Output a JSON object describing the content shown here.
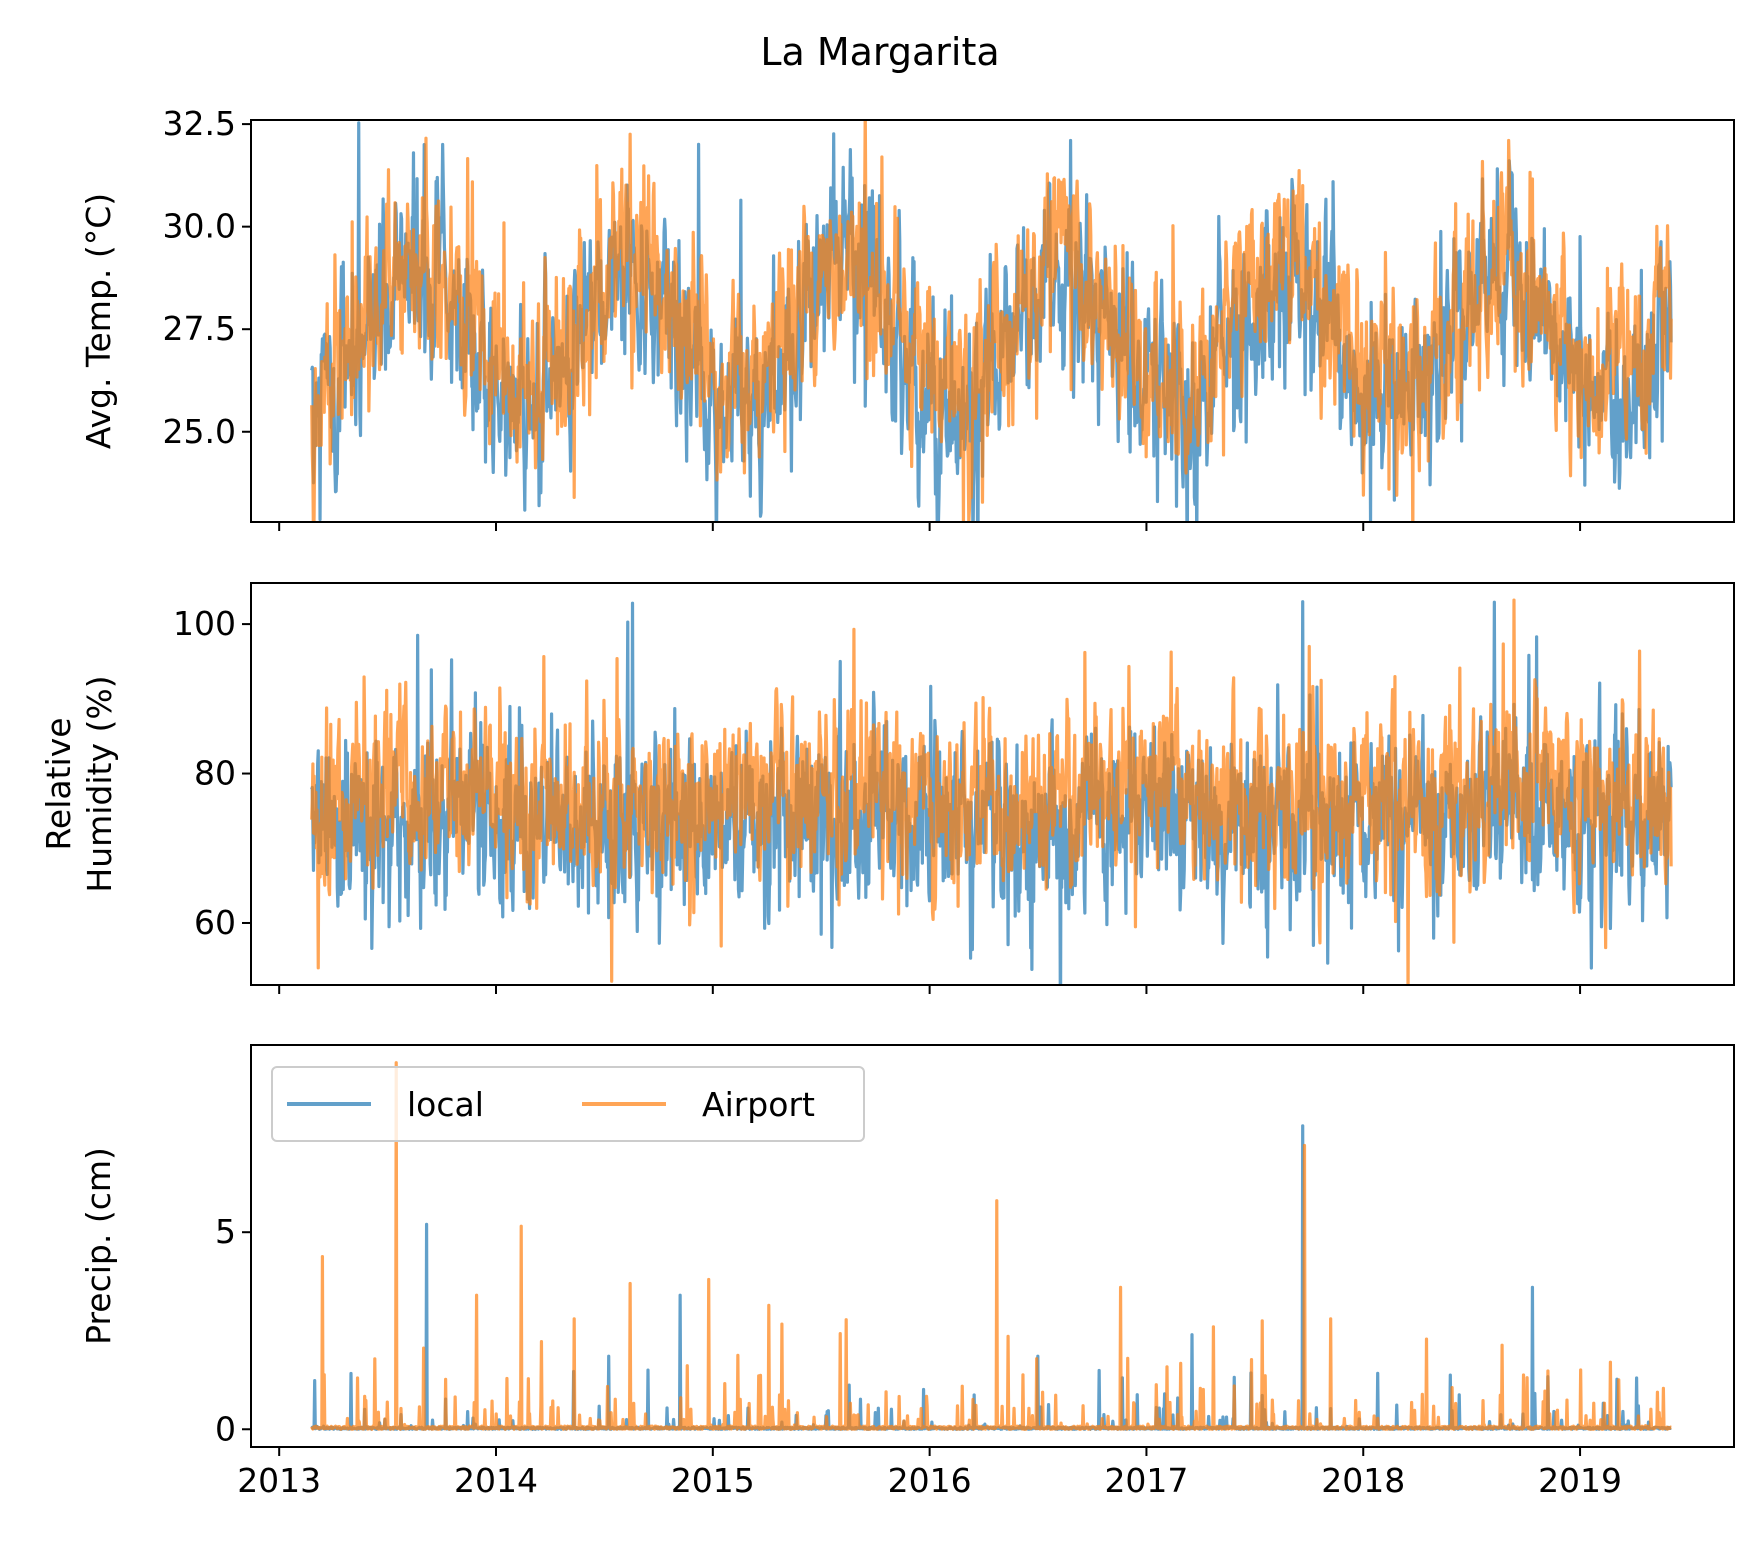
{
  "chart_data": {
    "type": "line",
    "title": "La Margarita",
    "x_range": [
      2013.15,
      2019.42
    ],
    "xlim": [
      2012.87,
      2019.71
    ],
    "x_ticks": [
      2013,
      2014,
      2015,
      2016,
      2017,
      2018,
      2019
    ],
    "x_tick_labels": [
      "2013",
      "2014",
      "2015",
      "2016",
      "2017",
      "2018",
      "2019"
    ],
    "colors": {
      "local": "#1f77b4",
      "Airport": "#ff7f0e"
    },
    "line_alpha": 0.7,
    "legend": {
      "entries": [
        "local",
        "Airport"
      ],
      "location": "upper-left",
      "ncol": 2,
      "panel": 2
    },
    "panels": [
      {
        "ylabel": "Avg. Temp. (°C)",
        "ylim": [
          22.8,
          32.6
        ],
        "y_ticks": [
          25.0,
          27.5,
          30.0,
          32.5
        ],
        "y_tick_labels": [
          "25.0",
          "27.5",
          "30.0",
          "32.5"
        ],
        "xtick_labels_visible": false,
        "series": [
          {
            "name": "local",
            "kind": "seasonal",
            "mean": 27.2,
            "amp": 1.6,
            "noise": 0.9,
            "phase": 0.62,
            "spikes": 0.02,
            "peaks": [
              [
                2013.62,
                31.8
              ],
              [
                2013.67,
                32.0
              ],
              [
                2016.65,
                32.1
              ],
              [
                2015.7,
                31.0
              ],
              [
                2014.2,
                23.2
              ],
              [
                2017.05,
                23.3
              ],
              [
                2017.22,
                23.4
              ]
            ]
          },
          {
            "name": "Airport",
            "kind": "seasonal",
            "mean": 27.6,
            "amp": 1.5,
            "noise": 0.9,
            "phase": 0.62,
            "spikes": 0.02,
            "peaks": [
              [
                2014.36,
                23.4
              ],
              [
                2014.58,
                31.4
              ],
              [
                2015.78,
                31.7
              ],
              [
                2017.72,
                31.0
              ],
              [
                2018.12,
                23.6
              ]
            ]
          }
        ]
      },
      {
        "ylabel": [
          "Relative",
          "Humidity (%)"
        ],
        "ylim": [
          51.7,
          105.5
        ],
        "y_ticks": [
          60,
          80,
          100
        ],
        "y_tick_labels": [
          "60",
          "80",
          "100"
        ],
        "xtick_labels_visible": false,
        "series": [
          {
            "name": "local",
            "kind": "noise",
            "mean": 74,
            "noise": 5.0,
            "trend": 1.0,
            "spikes": 0.02,
            "peaks": [
              [
                2013.64,
                98.5
              ],
              [
                2014.63,
                102.8
              ],
              [
                2017.72,
                103.0
              ],
              [
                2018.8,
                98.3
              ],
              [
                2016.19,
                55.3
              ],
              [
                2017.77,
                57.0
              ],
              [
                2015.5,
                58.5
              ]
            ]
          },
          {
            "name": "Airport",
            "kind": "noise",
            "mean": 77,
            "noise": 5.0,
            "trend": 1.5,
            "spikes": 0.02,
            "peaks": [
              [
                2013.18,
                54.0
              ],
              [
                2015.65,
                99.3
              ],
              [
                2017.75,
                97.0
              ],
              [
                2016.95,
                59.5
              ],
              [
                2018.15,
                60.2
              ]
            ]
          }
        ]
      },
      {
        "ylabel": "Precip. (cm)",
        "ylim": [
          -0.45,
          9.75
        ],
        "y_ticks": [
          0,
          5
        ],
        "y_tick_labels": [
          "0",
          "5"
        ],
        "xtick_labels_visible": true,
        "series": [
          {
            "name": "local",
            "kind": "precip",
            "base": 0.05,
            "event_rate": 0.06,
            "event_scale": 0.5,
            "peaks": [
              [
                2013.68,
                5.2
              ],
              [
                2017.72,
                7.7
              ],
              [
                2018.78,
                3.6
              ],
              [
                2014.85,
                3.4
              ],
              [
                2017.21,
                2.4
              ],
              [
                2019.26,
                1.3
              ]
            ]
          },
          {
            "name": "Airport",
            "kind": "precip",
            "base": 0.08,
            "event_rate": 0.09,
            "event_scale": 0.7,
            "peaks": [
              [
                2013.54,
                9.3
              ],
              [
                2016.31,
                5.8
              ],
              [
                2017.73,
                7.2
              ],
              [
                2014.62,
                3.7
              ],
              [
                2014.98,
                3.8
              ],
              [
                2013.91,
                3.4
              ],
              [
                2016.88,
                3.6
              ],
              [
                2014.36,
                2.8
              ],
              [
                2017.31,
                2.6
              ],
              [
                2017.85,
                2.8
              ],
              [
                2019.14,
                1.7
              ]
            ]
          }
        ]
      }
    ]
  }
}
